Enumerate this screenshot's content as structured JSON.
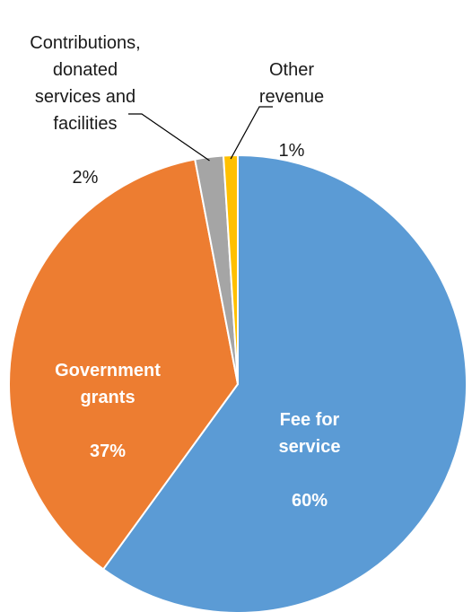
{
  "chart_data": {
    "type": "pie",
    "title": "",
    "slices": [
      {
        "label": "Fee for service",
        "label_text": "Fee for\nservice",
        "value": 60,
        "value_text": "60%",
        "color": "#5B9BD5"
      },
      {
        "label": "Government grants",
        "label_text": "Government\ngrants",
        "value": 37,
        "value_text": "37%",
        "color": "#ED7D31"
      },
      {
        "label": "Contributions, donated services and facilities",
        "label_text": "Contributions,\ndonated\nservices and\nfacilities",
        "value": 2,
        "value_text": "2%",
        "color": "#A5A5A5"
      },
      {
        "label": "Other revenue",
        "label_text": "Other\nrevenue",
        "value": 1,
        "value_text": "1%",
        "color": "#FFC000"
      }
    ],
    "start_angle": "12 o'clock",
    "direction": "clockwise",
    "legend": "none",
    "data_labels": "category name and percentage"
  }
}
